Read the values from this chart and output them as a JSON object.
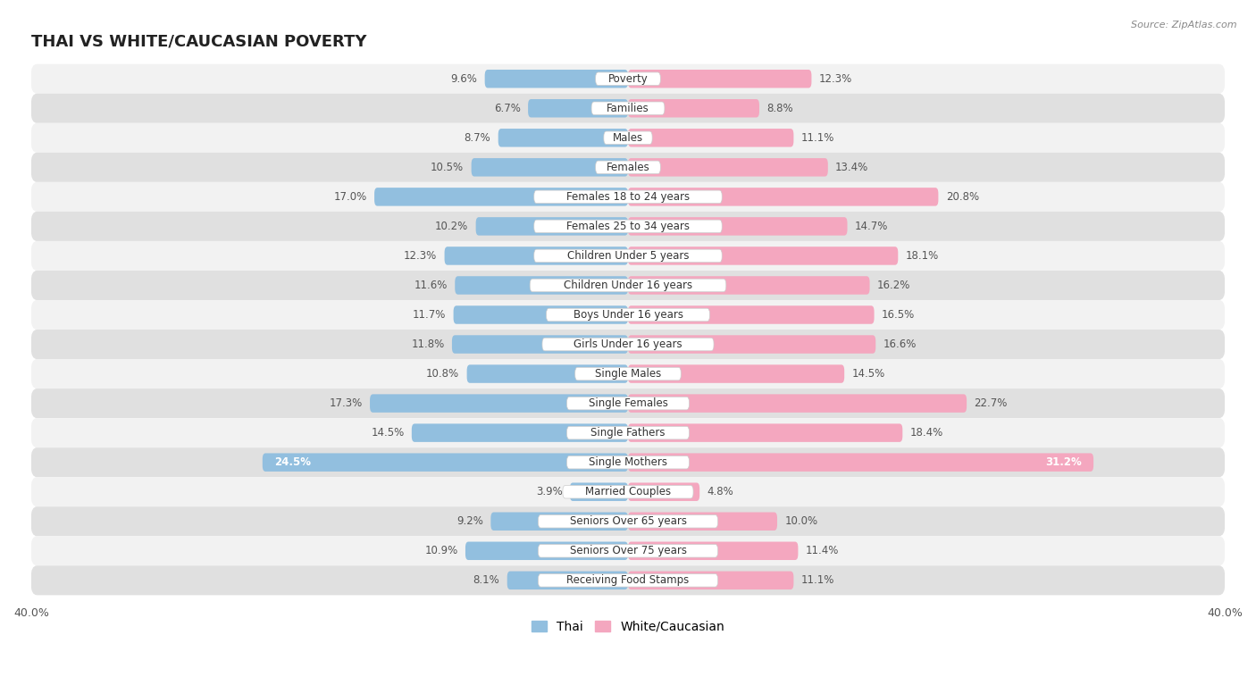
{
  "title": "THAI VS WHITE/CAUCASIAN POVERTY",
  "source": "Source: ZipAtlas.com",
  "categories": [
    "Poverty",
    "Families",
    "Males",
    "Females",
    "Females 18 to 24 years",
    "Females 25 to 34 years",
    "Children Under 5 years",
    "Children Under 16 years",
    "Boys Under 16 years",
    "Girls Under 16 years",
    "Single Males",
    "Single Females",
    "Single Fathers",
    "Single Mothers",
    "Married Couples",
    "Seniors Over 65 years",
    "Seniors Over 75 years",
    "Receiving Food Stamps"
  ],
  "thai_values": [
    9.6,
    6.7,
    8.7,
    10.5,
    17.0,
    10.2,
    12.3,
    11.6,
    11.7,
    11.8,
    10.8,
    17.3,
    14.5,
    24.5,
    3.9,
    9.2,
    10.9,
    8.1
  ],
  "white_values": [
    12.3,
    8.8,
    11.1,
    13.4,
    20.8,
    14.7,
    18.1,
    16.2,
    16.5,
    16.6,
    14.5,
    22.7,
    18.4,
    31.2,
    4.8,
    10.0,
    11.4,
    11.1
  ],
  "thai_color": "#92bfdf",
  "white_color": "#f4a7bf",
  "bg_color": "#ffffff",
  "row_color_light": "#f2f2f2",
  "row_color_dark": "#e0e0e0",
  "label_bg_color": "#ffffff",
  "xlim": 40.0,
  "bar_height": 0.62,
  "title_fontsize": 13,
  "label_fontsize": 8.5,
  "value_fontsize": 8.5,
  "tick_fontsize": 9,
  "legend_fontsize": 10
}
